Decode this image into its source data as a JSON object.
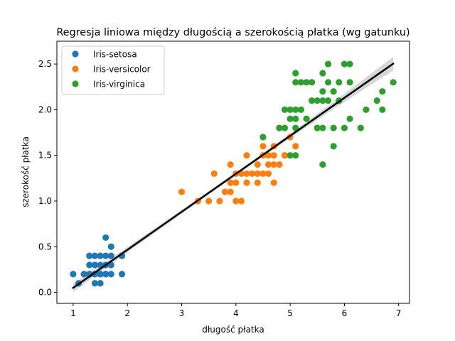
{
  "chart_data": {
    "type": "scatter",
    "title": "Regresja liniowa między długością a szerokością płatka (wg gatunku)",
    "xlabel": "długość płatka",
    "ylabel": "szerokość płatka",
    "xlim": [
      0.7,
      7.2
    ],
    "ylim": [
      -0.12,
      2.75
    ],
    "x_ticks": [
      1,
      2,
      3,
      4,
      5,
      6,
      7
    ],
    "y_ticks": [
      0.0,
      0.5,
      1.0,
      1.5,
      2.0,
      2.5
    ],
    "x_tick_labels": [
      "1",
      "2",
      "3",
      "4",
      "5",
      "6",
      "7"
    ],
    "y_tick_labels": [
      "0.0",
      "0.5",
      "1.0",
      "1.5",
      "2.0",
      "2.5"
    ],
    "grid": false,
    "legend_position": "top-left",
    "series": [
      {
        "name": "Iris-setosa",
        "color": "#1f77b4",
        "points": [
          [
            1.0,
            0.2
          ],
          [
            1.1,
            0.1
          ],
          [
            1.2,
            0.2
          ],
          [
            1.2,
            0.2
          ],
          [
            1.3,
            0.2
          ],
          [
            1.3,
            0.3
          ],
          [
            1.3,
            0.4
          ],
          [
            1.3,
            0.2
          ],
          [
            1.4,
            0.2
          ],
          [
            1.4,
            0.1
          ],
          [
            1.4,
            0.3
          ],
          [
            1.4,
            0.2
          ],
          [
            1.5,
            0.2
          ],
          [
            1.5,
            0.1
          ],
          [
            1.5,
            0.3
          ],
          [
            1.5,
            0.2
          ],
          [
            1.5,
            0.1
          ],
          [
            1.5,
            0.4
          ],
          [
            1.6,
            0.2
          ],
          [
            1.6,
            0.4
          ],
          [
            1.6,
            0.6
          ],
          [
            1.6,
            0.2
          ],
          [
            1.7,
            0.4
          ],
          [
            1.7,
            0.3
          ],
          [
            1.7,
            0.5
          ],
          [
            1.7,
            0.2
          ],
          [
            1.9,
            0.2
          ],
          [
            1.9,
            0.4
          ],
          [
            1.6,
            0.3
          ],
          [
            1.4,
            0.4
          ]
        ]
      },
      {
        "name": "Iris-versicolor",
        "color": "#ff7f0e",
        "points": [
          [
            3.0,
            1.1
          ],
          [
            3.3,
            1.0
          ],
          [
            3.5,
            1.0
          ],
          [
            3.6,
            1.3
          ],
          [
            3.7,
            1.0
          ],
          [
            3.8,
            1.1
          ],
          [
            3.9,
            1.1
          ],
          [
            3.9,
            1.2
          ],
          [
            3.9,
            1.4
          ],
          [
            4.0,
            1.0
          ],
          [
            4.0,
            1.2
          ],
          [
            4.0,
            1.3
          ],
          [
            4.1,
            1.0
          ],
          [
            4.1,
            1.3
          ],
          [
            4.2,
            1.2
          ],
          [
            4.2,
            1.3
          ],
          [
            4.2,
            1.5
          ],
          [
            4.3,
            1.3
          ],
          [
            4.4,
            1.2
          ],
          [
            4.4,
            1.3
          ],
          [
            4.4,
            1.4
          ],
          [
            4.5,
            1.3
          ],
          [
            4.5,
            1.5
          ],
          [
            4.5,
            1.6
          ],
          [
            4.6,
            1.3
          ],
          [
            4.6,
            1.4
          ],
          [
            4.6,
            1.5
          ],
          [
            4.7,
            1.2
          ],
          [
            4.7,
            1.4
          ],
          [
            4.7,
            1.5
          ],
          [
            4.7,
            1.6
          ],
          [
            4.8,
            1.4
          ],
          [
            4.8,
            1.8
          ],
          [
            4.9,
            1.5
          ],
          [
            5.0,
            1.7
          ],
          [
            5.1,
            1.6
          ],
          [
            4.9,
            1.5
          ]
        ]
      },
      {
        "name": "Iris-virginica",
        "color": "#2ca02c",
        "points": [
          [
            4.5,
            1.7
          ],
          [
            4.8,
            1.8
          ],
          [
            4.9,
            1.8
          ],
          [
            4.9,
            2.0
          ],
          [
            5.0,
            1.5
          ],
          [
            5.0,
            1.9
          ],
          [
            5.0,
            2.0
          ],
          [
            5.1,
            1.5
          ],
          [
            5.1,
            1.8
          ],
          [
            5.1,
            1.9
          ],
          [
            5.1,
            2.0
          ],
          [
            5.1,
            2.3
          ],
          [
            5.1,
            2.4
          ],
          [
            5.2,
            2.0
          ],
          [
            5.2,
            2.3
          ],
          [
            5.3,
            1.9
          ],
          [
            5.3,
            2.3
          ],
          [
            5.4,
            2.1
          ],
          [
            5.4,
            2.3
          ],
          [
            5.5,
            1.8
          ],
          [
            5.5,
            2.1
          ],
          [
            5.5,
            1.8
          ],
          [
            5.6,
            1.4
          ],
          [
            5.6,
            1.8
          ],
          [
            5.6,
            2.1
          ],
          [
            5.6,
            2.2
          ],
          [
            5.6,
            2.4
          ],
          [
            5.7,
            2.1
          ],
          [
            5.7,
            2.3
          ],
          [
            5.7,
            2.5
          ],
          [
            5.8,
            1.6
          ],
          [
            5.8,
            1.8
          ],
          [
            5.8,
            2.2
          ],
          [
            5.9,
            2.1
          ],
          [
            5.9,
            2.3
          ],
          [
            6.0,
            1.8
          ],
          [
            6.0,
            2.5
          ],
          [
            6.1,
            1.9
          ],
          [
            6.1,
            2.3
          ],
          [
            6.1,
            2.5
          ],
          [
            6.3,
            1.8
          ],
          [
            6.4,
            2.0
          ],
          [
            6.6,
            2.1
          ],
          [
            6.7,
            2.0
          ],
          [
            6.7,
            2.2
          ],
          [
            6.9,
            2.3
          ]
        ]
      }
    ],
    "regression": {
      "color": "#000000",
      "ci_color": "#c8c8c8",
      "x_start": 1.0,
      "x_end": 6.9,
      "slope": 0.416,
      "intercept": -0.366,
      "ci_half_width_start": 0.045,
      "ci_half_width_mid": 0.018,
      "ci_half_width_end": 0.075
    }
  }
}
